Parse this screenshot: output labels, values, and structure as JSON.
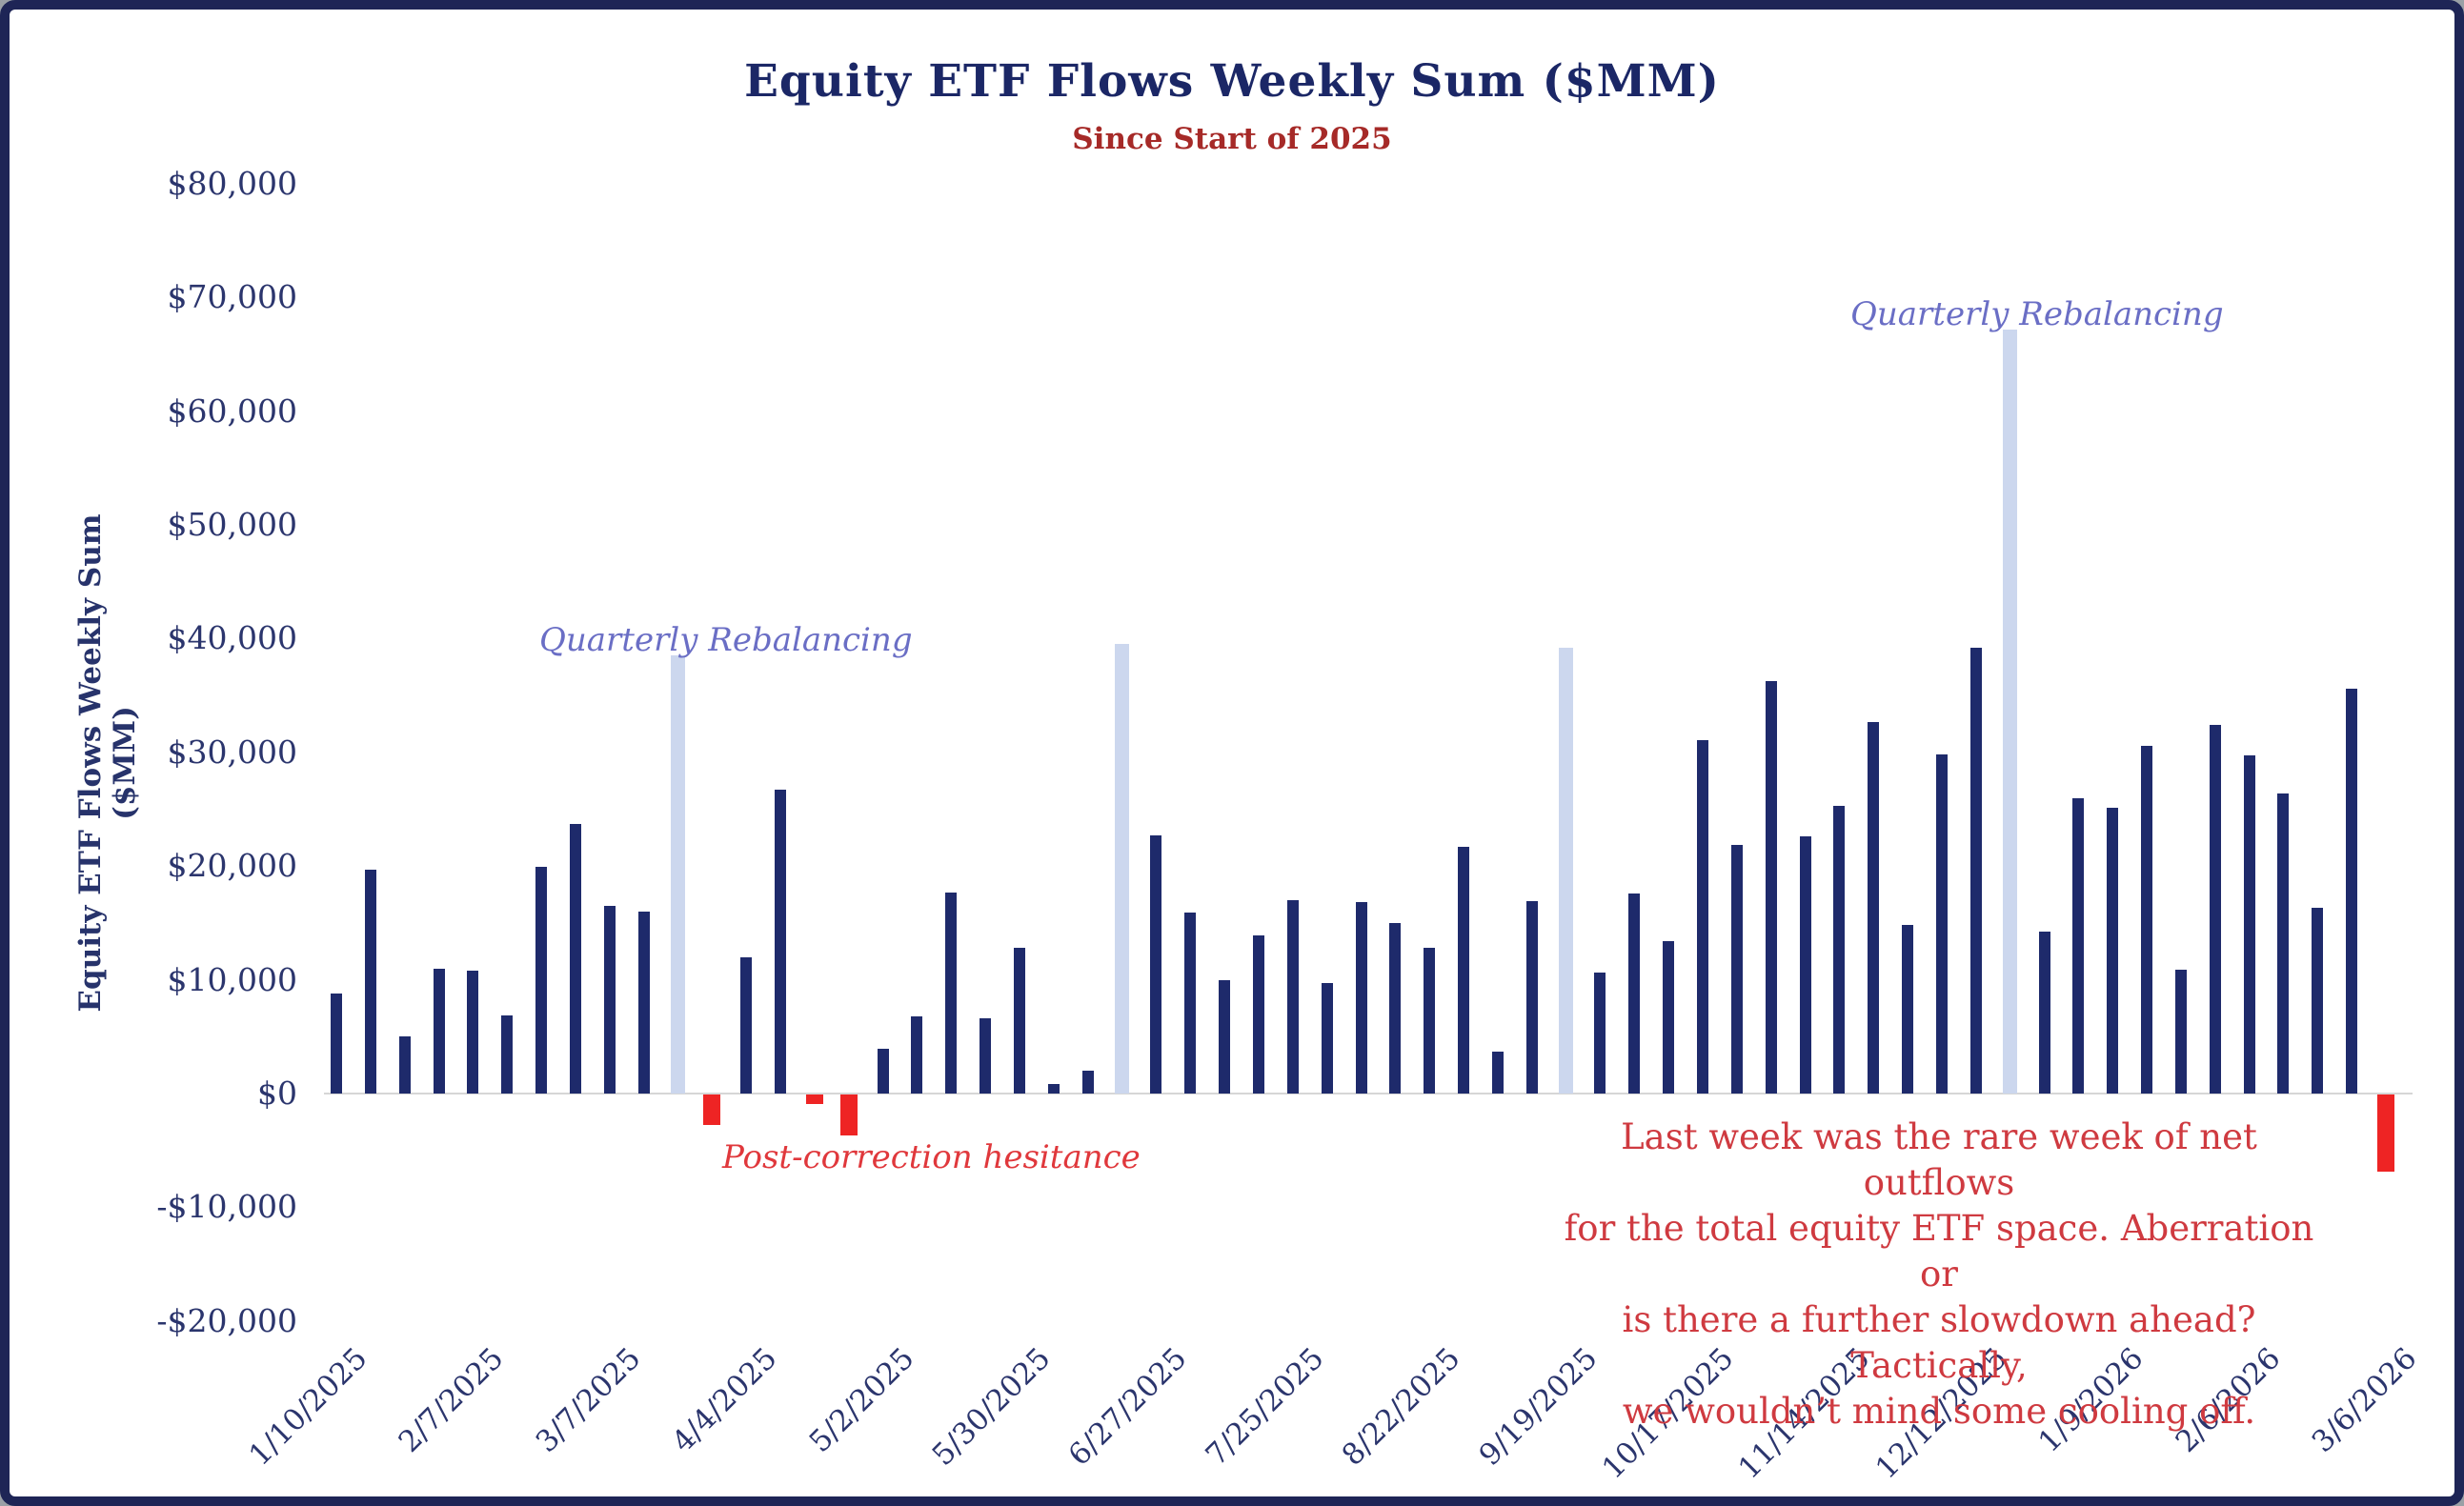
{
  "title": "Equity ETF Flows Weekly Sum ($MM)",
  "subtitle": "Since Start of 2025",
  "y_axis_title": "Equity ETF Flows Weekly Sum ($MM)",
  "annotations": {
    "quarterly_rebalancing_label": "Quarterly Rebalancing",
    "post_correction_label": "Post-correction hesitance",
    "outflow_note_lines": [
      "Last week was the rare week of net outflows",
      "for the total equity ETF space. Aberration or",
      "is there a further slowdown ahead? Tactically,",
      "we wouldn’t mind some cooling off."
    ]
  },
  "colors": {
    "positive_bar": "#1e2a6b",
    "rebalancing_bar": "#ccd7ee",
    "negative_bar": "#ee2424",
    "title_text": "#1b2766",
    "subtitle_text": "#a62a28",
    "rebalancing_text": "#6a6ec5",
    "negative_text": "#cf3a40",
    "axis_text": "#2b356d",
    "baseline": "#d6d6d6",
    "frame_border": "#1e2556"
  },
  "chart_data": {
    "type": "bar",
    "title": "Equity ETF Flows Weekly Sum ($MM)",
    "subtitle": "Since Start of 2025",
    "xlabel": "",
    "ylabel": "Equity ETF Flows Weekly Sum ($MM)",
    "ylim": [
      -20000,
      80000
    ],
    "grid": false,
    "legend": false,
    "y_tick_values": [
      80000,
      70000,
      60000,
      50000,
      40000,
      30000,
      20000,
      10000,
      0,
      -10000,
      -20000
    ],
    "y_tick_labels": [
      "$80,000",
      "$70,000",
      "$60,000",
      "$50,000",
      "$40,000",
      "$30,000",
      "$20,000",
      "$10,000",
      "$0",
      "-$10,000",
      "-$20,000"
    ],
    "x_tick_labels": [
      "1/10/2025",
      "2/7/2025",
      "3/7/2025",
      "4/4/2025",
      "5/2/2025",
      "5/30/2025",
      "6/27/2025",
      "7/25/2025",
      "8/22/2025",
      "9/19/2025",
      "10/17/2025",
      "11/14/2025",
      "12/12/2025",
      "1/9/2026",
      "2/6/2026",
      "3/6/2026"
    ],
    "x_tick_every": 4,
    "categories": [
      "1/10/2025",
      "1/17/2025",
      "1/24/2025",
      "1/31/2025",
      "2/7/2025",
      "2/14/2025",
      "2/21/2025",
      "2/28/2025",
      "3/7/2025",
      "3/14/2025",
      "3/21/2025",
      "3/28/2025",
      "4/4/2025",
      "4/11/2025",
      "4/18/2025",
      "4/25/2025",
      "5/2/2025",
      "5/9/2025",
      "5/16/2025",
      "5/23/2025",
      "5/30/2025",
      "6/6/2025",
      "6/13/2025",
      "6/20/2025",
      "6/27/2025",
      "7/4/2025",
      "7/11/2025",
      "7/18/2025",
      "7/25/2025",
      "8/1/2025",
      "8/8/2025",
      "8/15/2025",
      "8/22/2025",
      "8/29/2025",
      "9/5/2025",
      "9/12/2025",
      "9/19/2025",
      "9/26/2025",
      "10/3/2025",
      "10/10/2025",
      "10/17/2025",
      "10/24/2025",
      "10/31/2025",
      "11/7/2025",
      "11/14/2025",
      "11/21/2025",
      "11/28/2025",
      "12/5/2025",
      "12/12/2025",
      "12/19/2025",
      "12/26/2025",
      "1/2/2026",
      "1/9/2026",
      "1/16/2026",
      "1/23/2026",
      "1/30/2026",
      "2/6/2026",
      "2/13/2026",
      "2/20/2026",
      "2/27/2026",
      "3/6/2026"
    ],
    "values": [
      8800,
      19700,
      5000,
      11000,
      10800,
      6900,
      19900,
      23700,
      16500,
      16000,
      38500,
      -2700,
      12000,
      26700,
      -800,
      -3600,
      3900,
      6800,
      17700,
      6600,
      12800,
      800,
      2000,
      39500,
      22700,
      15900,
      10000,
      13900,
      17000,
      9700,
      16800,
      15000,
      12800,
      21700,
      3700,
      16900,
      39200,
      10600,
      17600,
      13400,
      31100,
      21900,
      36300,
      22600,
      25300,
      32700,
      14800,
      29800,
      39200,
      67200,
      14200,
      26000,
      25100,
      30600,
      10900,
      32400,
      29700,
      26400,
      16300,
      35600,
      -6800
    ],
    "rebalancing_indices": [
      10,
      23,
      36,
      49
    ],
    "series_note": "Navy = weekly net inflow; light blue = quarterly rebalancing week; red = net outflow week"
  }
}
